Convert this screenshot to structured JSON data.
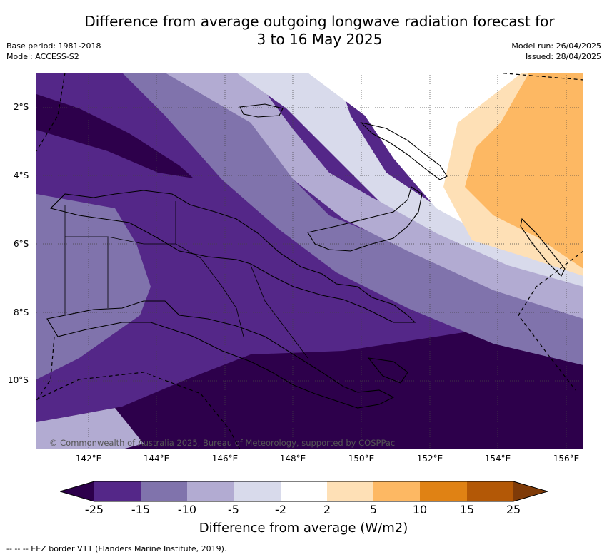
{
  "title_line1": "Difference from average outgoing longwave radiation forecast for",
  "title_line2": "3 to 16 May 2025",
  "base_period": "Base period: 1981-2018",
  "model": "Model: ACCESS-S2",
  "model_run": "Model run: 26/04/2025",
  "issued": "Issued: 28/04/2025",
  "lat_labels": [
    "2°S",
    "4°S",
    "6°S",
    "8°S",
    "10°S"
  ],
  "lon_labels": [
    "142°E",
    "144°E",
    "146°E",
    "148°E",
    "150°E",
    "152°E",
    "154°E",
    "156°E"
  ],
  "copyright": "© Commonwealth of Australia 2025, Bureau of Meteorology, supported by COSPPac",
  "colorbar": {
    "label": "Difference from average (W/m2)",
    "ticks": [
      "-25",
      "-15",
      "-10",
      "-5",
      "-2",
      "2",
      "5",
      "10",
      "15",
      "25"
    ],
    "colors": [
      "#2d004b",
      "#542788",
      "#8073ac",
      "#b2abd2",
      "#d8daeb",
      "#ffffff",
      "#fee0b6",
      "#fdb863",
      "#e08214",
      "#b35806",
      "#7f3b08"
    ]
  },
  "footer": "--  --  -- EEZ border V11 (Flanders Marine Institute, 2019)."
}
